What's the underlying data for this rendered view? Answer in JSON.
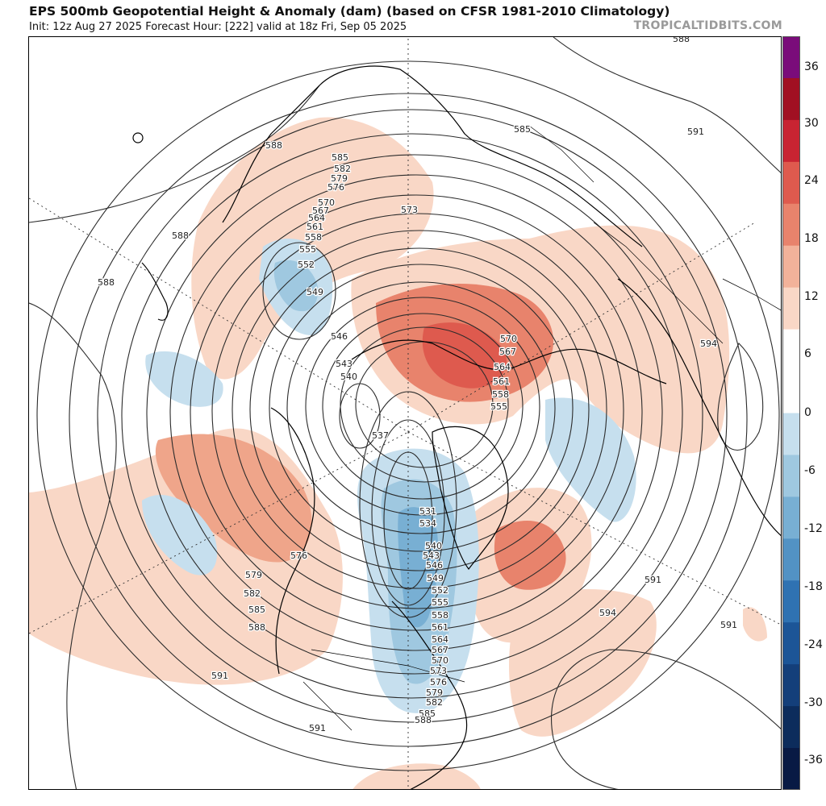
{
  "header": {
    "title": "EPS 500mb Geopotential Height & Anomaly (dam) (based on CFSR 1981-2010 Climatology)",
    "subtitle": "Init: 12z Aug 27 2025   Forecast Hour: [222]   valid at 18z Fri, Sep 05 2025",
    "credit": "TROPICALTIDBITS.COM"
  },
  "colorbar": {
    "labels": [
      "36",
      "30",
      "24",
      "18",
      "12",
      "6",
      "0",
      "-6",
      "-12",
      "-18",
      "-24",
      "-30",
      "-36"
    ],
    "colors": [
      "#7a0c7a",
      "#a11022",
      "#c82432",
      "#de5a4e",
      "#e8836c",
      "#f2b29a",
      "#f9d7c6",
      "#ffffff",
      "#ffffff",
      "#c6dfee",
      "#9fc8e0",
      "#78afd3",
      "#5292c4",
      "#2f72b2",
      "#1c5597",
      "#143f7a",
      "#0c2c5c",
      "#081a44"
    ],
    "warm": "#e8836c",
    "cold": "#78afd3"
  },
  "contour_labels": [
    {
      "text": "588"
    },
    {
      "text": "588"
    },
    {
      "text": "588"
    },
    {
      "text": "588"
    },
    {
      "text": "585"
    },
    {
      "text": "591"
    },
    {
      "text": "585"
    },
    {
      "text": "582"
    },
    {
      "text": "579"
    },
    {
      "text": "576"
    },
    {
      "text": "573"
    },
    {
      "text": "570"
    },
    {
      "text": "567"
    },
    {
      "text": "564"
    },
    {
      "text": "561"
    },
    {
      "text": "558"
    },
    {
      "text": "555"
    },
    {
      "text": "552"
    },
    {
      "text": "549"
    },
    {
      "text": "546"
    },
    {
      "text": "543"
    },
    {
      "text": "540"
    },
    {
      "text": "537"
    },
    {
      "text": "570"
    },
    {
      "text": "567"
    },
    {
      "text": "564"
    },
    {
      "text": "561"
    },
    {
      "text": "558"
    },
    {
      "text": "555"
    },
    {
      "text": "594"
    },
    {
      "text": "531"
    },
    {
      "text": "534"
    },
    {
      "text": "540"
    },
    {
      "text": "543"
    },
    {
      "text": "546"
    },
    {
      "text": "549"
    },
    {
      "text": "552"
    },
    {
      "text": "555"
    },
    {
      "text": "558"
    },
    {
      "text": "561"
    },
    {
      "text": "564"
    },
    {
      "text": "567"
    },
    {
      "text": "570"
    },
    {
      "text": "573"
    },
    {
      "text": "576"
    },
    {
      "text": "579"
    },
    {
      "text": "582"
    },
    {
      "text": "585"
    },
    {
      "text": "588"
    },
    {
      "text": "576"
    },
    {
      "text": "579"
    },
    {
      "text": "582"
    },
    {
      "text": "585"
    },
    {
      "text": "588"
    },
    {
      "text": "591"
    },
    {
      "text": "591"
    },
    {
      "text": "594"
    },
    {
      "text": "591"
    },
    {
      "text": "591"
    }
  ]
}
